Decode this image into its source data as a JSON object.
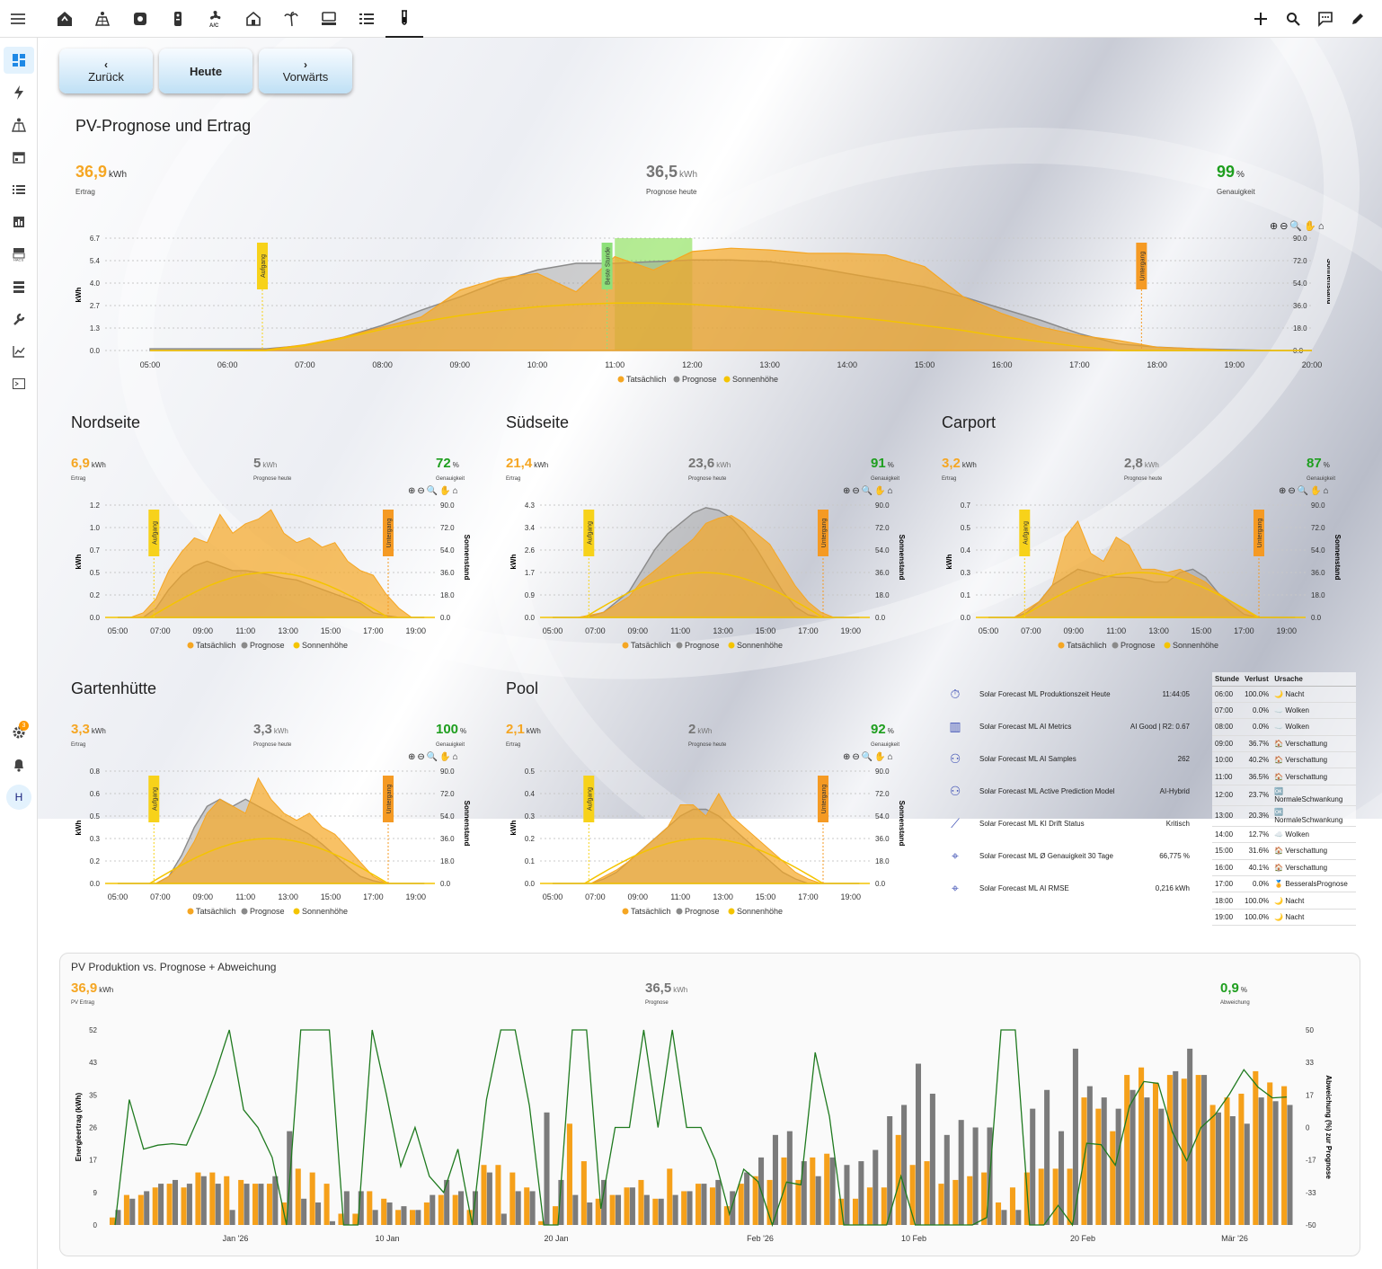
{
  "topbar": {
    "menu_icon": "menu-icon",
    "views": [
      "home-icon",
      "solar-panel-icon",
      "device-icon",
      "remote-icon",
      "fan-ac-icon",
      "house-icon",
      "palm-tree-icon",
      "server-icon",
      "list-icon",
      "test-tube-icon"
    ],
    "actions": [
      "plus-icon",
      "search-icon",
      "chat-icon",
      "pencil-icon"
    ]
  },
  "sidebar": {
    "items": [
      "dashboard-icon",
      "energy-icon",
      "solar-panel-icon",
      "calendar-icon",
      "logbook-icon",
      "history-icon",
      "hacs-icon",
      "server-icon",
      "wrench-icon",
      "chart-icon",
      "terminal-icon"
    ],
    "settings_badge": "3",
    "avatar": "H"
  },
  "nav": {
    "back": "Zurück",
    "today": "Heute",
    "forward": "Vorwärts"
  },
  "main": {
    "title": "PV-Prognose und Ertrag",
    "ertrag_value": "36,9",
    "ertrag_unit": "kWh",
    "ertrag_label": "Ertrag",
    "prognose_value": "36,5",
    "prognose_unit": "kWh",
    "prognose_label": "Prognose heute",
    "genauigkeit_value": "99",
    "genauigkeit_unit": "%",
    "genauigkeit_label": "Genauigkeit",
    "y_label": "kWh",
    "y2_label": "Sonnenstand",
    "y_ticks": [
      "6.7",
      "5.4",
      "4.0",
      "2.7",
      "1.3",
      "0.0"
    ],
    "y2_ticks": [
      "90.0",
      "72.0",
      "54.0",
      "36.0",
      "18.0",
      "0.0"
    ],
    "x_ticks": [
      "05:00",
      "06:00",
      "07:00",
      "08:00",
      "09:00",
      "10:00",
      "11:00",
      "12:00",
      "13:00",
      "14:00",
      "15:00",
      "16:00",
      "17:00",
      "18:00",
      "19:00",
      "20:00"
    ],
    "aufgang": "Aufgang",
    "untergang": "Untergang",
    "beste_stunde": "Beste Stunde",
    "legend": [
      "Tatsächlich",
      "Prognose",
      "Sonnenhöhe"
    ]
  },
  "panels": [
    {
      "title": "Nordseite",
      "ertrag": "6,9",
      "prognose": "5",
      "genauigkeit": "72",
      "y_ticks": [
        "1.2",
        "1.0",
        "0.7",
        "0.5",
        "0.2",
        "0.0"
      ]
    },
    {
      "title": "Südseite",
      "ertrag": "21,4",
      "prognose": "23,6",
      "genauigkeit": "91",
      "y_ticks": [
        "4.3",
        "3.4",
        "2.6",
        "1.7",
        "0.9",
        "0.0"
      ]
    },
    {
      "title": "Carport",
      "ertrag": "3,2",
      "prognose": "2,8",
      "genauigkeit": "87",
      "y_ticks": [
        "0.7",
        "0.5",
        "0.4",
        "0.3",
        "0.1",
        "0.0"
      ]
    },
    {
      "title": "Gartenhütte",
      "ertrag": "3,3",
      "prognose": "3,3",
      "genauigkeit": "100",
      "y_ticks": [
        "0.8",
        "0.6",
        "0.5",
        "0.3",
        "0.2",
        "0.0"
      ]
    },
    {
      "title": "Pool",
      "ertrag": "2,1",
      "prognose": "2",
      "genauigkeit": "92",
      "y_ticks": [
        "0.5",
        "0.4",
        "0.3",
        "0.2",
        "0.1",
        "0.0"
      ]
    }
  ],
  "panel_common": {
    "unit": "kWh",
    "pct": "%",
    "ertrag_label": "Ertrag",
    "prognose_label": "Prognose heute",
    "genauigkeit_label": "Genauigkeit",
    "y2_ticks": [
      "90.0",
      "72.0",
      "54.0",
      "36.0",
      "18.0",
      "0.0"
    ],
    "x_ticks": [
      "05:00",
      "07:00",
      "09:00",
      "11:00",
      "13:00",
      "15:00",
      "17:00",
      "19:00"
    ]
  },
  "sensors": [
    {
      "icon": "timer-icon",
      "name": "Solar Forecast ML Produktionszeit Heute",
      "value": "11:44:05"
    },
    {
      "icon": "chart-box-icon",
      "name": "Solar Forecast ML AI Metrics",
      "value": "AI Good | R2: 0.67"
    },
    {
      "icon": "brain-icon",
      "name": "Solar Forecast ML AI Samples",
      "value": "262"
    },
    {
      "icon": "brain-icon",
      "name": "Solar Forecast ML Active Prediction Model",
      "value": "AI-Hybrid"
    },
    {
      "icon": "trend-icon",
      "name": "Solar Forecast ML KI Drift Status",
      "value": "Kritisch"
    },
    {
      "icon": "crosshair-icon",
      "name": "Solar Forecast ML Ø Genauigkeit 30 Tage",
      "value": "66,775 %"
    },
    {
      "icon": "crosshair-icon",
      "name": "Solar Forecast ML AI RMSE",
      "value": "0,216 kWh"
    }
  ],
  "table": {
    "headers": [
      "Stunde",
      "Verlust",
      "Ursache"
    ],
    "rows": [
      [
        "06:00",
        "100.0%",
        "🌙 Nacht"
      ],
      [
        "07:00",
        "0.0%",
        "☁️ Wolken"
      ],
      [
        "08:00",
        "0.0%",
        "☁️ Wolken"
      ],
      [
        "09:00",
        "36.7%",
        "🏠 Verschattung"
      ],
      [
        "10:00",
        "40.2%",
        "🏠 Verschattung"
      ],
      [
        "11:00",
        "36.5%",
        "🏠 Verschattung"
      ],
      [
        "12:00",
        "23.7%",
        "🆗 NormaleSchwankung"
      ],
      [
        "13:00",
        "20.3%",
        "🆗 NormaleSchwankung"
      ],
      [
        "14:00",
        "12.7%",
        "☁️ Wolken"
      ],
      [
        "15:00",
        "31.6%",
        "🏠 Verschattung"
      ],
      [
        "16:00",
        "40.1%",
        "🏠 Verschattung"
      ],
      [
        "17:00",
        "0.0%",
        "🏅 BesseralsPrognose"
      ],
      [
        "18:00",
        "100.0%",
        "🌙 Nacht"
      ],
      [
        "19:00",
        "100.0%",
        "🌙 Nacht"
      ]
    ]
  },
  "bottom": {
    "title": "PV Produktion vs. Prognose + Abweichung",
    "pv_value": "36,9",
    "pv_unit": "kWh",
    "pv_label": "PV Ertrag",
    "prog_value": "36,5",
    "prog_unit": "kWh",
    "prog_label": "Prognose",
    "abw_value": "0,9",
    "abw_unit": "%",
    "abw_label": "Abweichung",
    "y_label": "Energieertrag (kWh)",
    "y2_label": "Abweichung (%) zur Prognose",
    "y_ticks": [
      "52",
      "43",
      "35",
      "26",
      "17",
      "9",
      "0"
    ],
    "y2_ticks": [
      "50",
      "33",
      "17",
      "0",
      "-17",
      "-33",
      "-50"
    ],
    "x_ticks": [
      "Jan '26",
      "10 Jan",
      "20 Jan",
      "Feb '26",
      "10 Feb",
      "20 Feb",
      "Mär '26"
    ]
  },
  "chart_data": [
    {
      "type": "area",
      "title": "PV-Prognose und Ertrag",
      "x": [
        "05:00",
        "06:00",
        "06:30",
        "07:00",
        "07:30",
        "08:00",
        "08:30",
        "09:00",
        "09:30",
        "10:00",
        "10:30",
        "11:00",
        "11:30",
        "12:00",
        "12:30",
        "13:00",
        "13:30",
        "14:00",
        "14:30",
        "15:00",
        "15:30",
        "16:00",
        "16:30",
        "17:00",
        "17:30",
        "18:00",
        "18:30",
        "19:00",
        "19:30",
        "20:00"
      ],
      "series": [
        {
          "name": "Tatsächlich",
          "values": [
            0,
            0,
            0.05,
            0.35,
            0.8,
            1.4,
            2.0,
            3.6,
            4.3,
            4.6,
            3.5,
            5.6,
            4.8,
            5.9,
            6.1,
            6.0,
            5.8,
            5.8,
            5.7,
            5.0,
            3.2,
            2.2,
            1.4,
            0.9,
            0.6,
            0.2,
            0.1,
            0,
            0,
            0
          ]
        },
        {
          "name": "Prognose",
          "values": [
            0.1,
            0.1,
            0.1,
            0.3,
            0.8,
            1.5,
            2.4,
            3.2,
            4.1,
            4.8,
            5.2,
            5.2,
            5.3,
            5.4,
            5.4,
            5.3,
            5.0,
            4.6,
            4.2,
            3.8,
            3.2,
            2.5,
            1.8,
            1.0,
            0.4,
            0.2,
            0.1,
            0.05,
            0,
            0
          ]
        },
        {
          "name": "Sonnenhöhe",
          "values": [
            0,
            0,
            0,
            4,
            10,
            17,
            23,
            28,
            32,
            35,
            37,
            38,
            38,
            37,
            35,
            33,
            30,
            27,
            24,
            20,
            16,
            11,
            7,
            3,
            0,
            0,
            0,
            0,
            0,
            0
          ]
        }
      ],
      "ylim": [
        0,
        6.7
      ],
      "y2lim": [
        0,
        90
      ],
      "ylabel": "kWh",
      "y2label": "Sonnenstand",
      "annotations": [
        "Aufgang",
        "Beste Stunde",
        "Untergang"
      ]
    },
    {
      "type": "bar",
      "title": "PV Produktion vs. Prognose + Abweichung",
      "series": [
        {
          "name": "PV Ertrag",
          "values": [
            2,
            8,
            8,
            10,
            11,
            10,
            14,
            14,
            13,
            12,
            11,
            11,
            6,
            15,
            14,
            11,
            3,
            3,
            9,
            7,
            4,
            4,
            6,
            8,
            8,
            4,
            16,
            16,
            14,
            10,
            1,
            5,
            27,
            17,
            7,
            8,
            10,
            12,
            7,
            15,
            9,
            11,
            10,
            5,
            11,
            13,
            12,
            18,
            12,
            18,
            19,
            7,
            7,
            10,
            10,
            24,
            16,
            17,
            11,
            12,
            13,
            14,
            6,
            10,
            14,
            15,
            15,
            15,
            34,
            31,
            25,
            40,
            42,
            38,
            40,
            39,
            40,
            32,
            34,
            35,
            41,
            38,
            37
          ]
        },
        {
          "name": "Prognose",
          "values": [
            4,
            7,
            9,
            11,
            12,
            11,
            13,
            11,
            4,
            11,
            11,
            13,
            25,
            7,
            6,
            1,
            9,
            9,
            4,
            6,
            5,
            4,
            8,
            12,
            9,
            9,
            14,
            3,
            9,
            9,
            30,
            12,
            8,
            6,
            12,
            8,
            10,
            8,
            7,
            8,
            9,
            11,
            12,
            9,
            14,
            18,
            24,
            25,
            17,
            13,
            18,
            16,
            17,
            20,
            29,
            32,
            43,
            35,
            24,
            28,
            26,
            26,
            4,
            4,
            31,
            36,
            25,
            47,
            37,
            34,
            31,
            36,
            34,
            31,
            41,
            47,
            40,
            30,
            29,
            27,
            34,
            33,
            32
          ]
        }
      ],
      "line": {
        "name": "Abweichung",
        "ylim": [
          -50,
          50
        ]
      },
      "ylim": [
        0,
        52
      ],
      "ylabel": "Energieertrag (kWh)",
      "y2label": "Abweichung (%) zur Prognose"
    }
  ]
}
